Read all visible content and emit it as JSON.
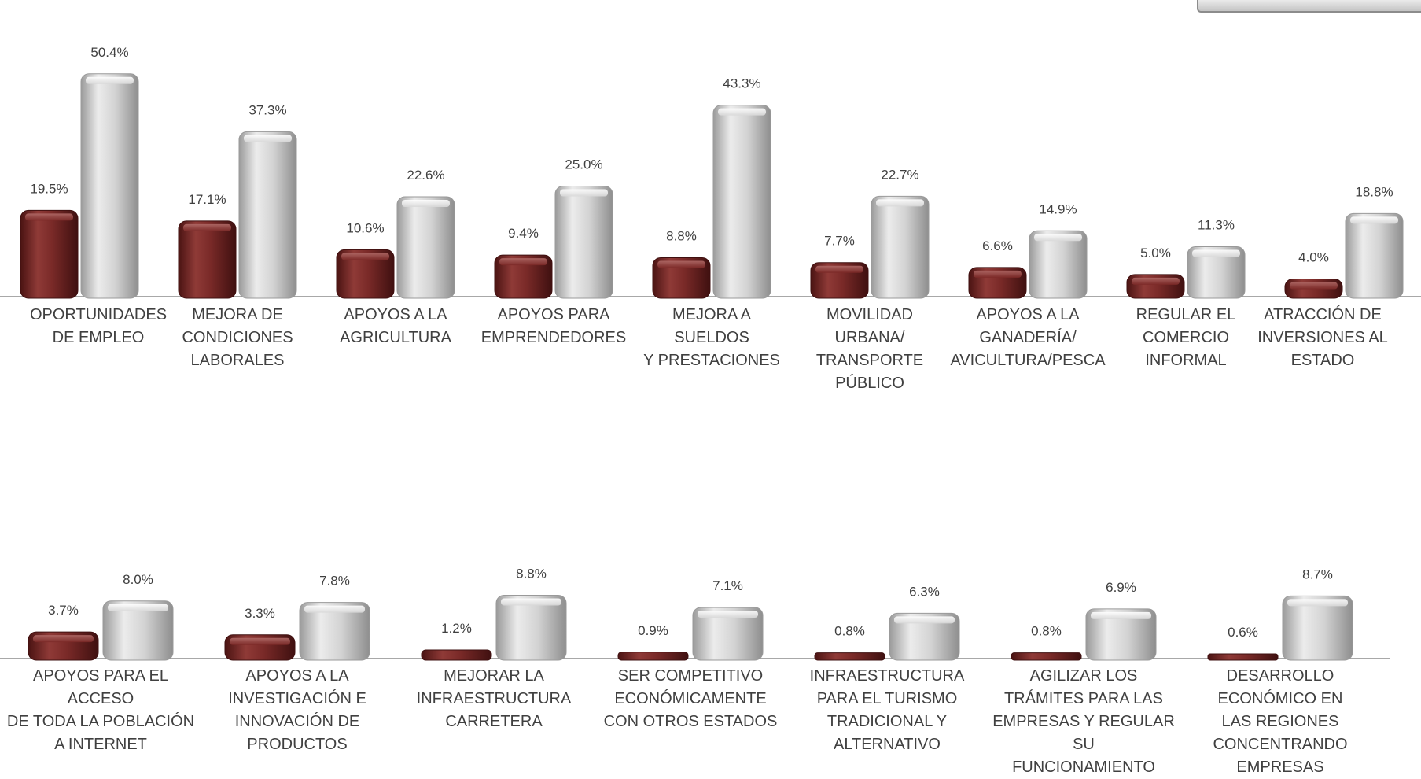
{
  "chart_data": [
    {
      "type": "bar",
      "categories": [
        "OPORTUNIDADES\nDE EMPLEO",
        "MEJORA DE\nCONDICIONES\nLABORALES",
        "APOYOS A LA\nAGRICULTURA",
        "APOYOS PARA\nEMPRENDEDORES",
        "MEJORA A\nSUELDOS\nY PRESTACIONES",
        "MOVILIDAD\nURBANA/\nTRANSPORTE\nPÚBLICO",
        "APOYOS A LA\nGANADERÍA/\nAVICULTURA/PESCA",
        "REGULAR EL\nCOMERCIO\nINFORMAL",
        "ATRACCIÓN DE\nINVERSIONES AL\nESTADO"
      ],
      "series": [
        {
          "values": [
            19.5,
            17.1,
            10.6,
            9.4,
            8.8,
            7.7,
            6.6,
            5.0,
            4.0
          ],
          "labels": [
            "19.5%",
            "17.1%",
            "10.6%",
            "9.4%",
            "8.8%",
            "7.7%",
            "6.6%",
            "5.0%",
            "4.0%"
          ],
          "color": "#7b2826"
        },
        {
          "values": [
            50.4,
            37.3,
            22.6,
            25.0,
            43.3,
            22.7,
            14.9,
            11.3,
            18.8
          ],
          "labels": [
            "50.4%",
            "37.3%",
            "22.6%",
            "25.0%",
            "43.3%",
            "22.7%",
            "14.9%",
            "11.3%",
            "18.8%"
          ],
          "color": "#c8c8c8"
        }
      ],
      "unit": "%",
      "grid": false
    },
    {
      "type": "bar",
      "categories": [
        "APOYOS PARA EL ACCESO\nDE TODA LA POBLACIÓN\nA INTERNET",
        "APOYOS A LA\nINVESTIGACIÓN E\nINNOVACIÓN DE\nPRODUCTOS",
        "MEJORAR LA\nINFRAESTRUCTURA\nCARRETERA",
        "SER COMPETITIVO\nECONÓMICAMENTE\nCON OTROS ESTADOS",
        "INFRAESTRUCTURA\nPARA EL TURISMO\nTRADICIONAL Y\nALTERNATIVO",
        "AGILIZAR LOS\nTRÁMITES PARA LAS\nEMPRESAS Y REGULAR SU\nFUNCIONAMIENTO",
        "DESARROLLO\nECONÓMICO EN\nLAS REGIONES\nCONCENTRANDO\nEMPRESAS"
      ],
      "series": [
        {
          "values": [
            3.7,
            3.3,
            1.2,
            0.9,
            0.8,
            0.8,
            0.6
          ],
          "labels": [
            "3.7%",
            "3.3%",
            "1.2%",
            "0.9%",
            "0.8%",
            "0.8%",
            "0.6%"
          ],
          "color": "#7b2826"
        },
        {
          "values": [
            8.0,
            7.8,
            8.8,
            7.1,
            6.3,
            6.9,
            8.7
          ],
          "labels": [
            "8.0%",
            "7.8%",
            "8.8%",
            "7.1%",
            "6.3%",
            "6.9%",
            "8.7%"
          ],
          "color": "#c8c8c8"
        }
      ],
      "unit": "%",
      "grid": false
    }
  ]
}
